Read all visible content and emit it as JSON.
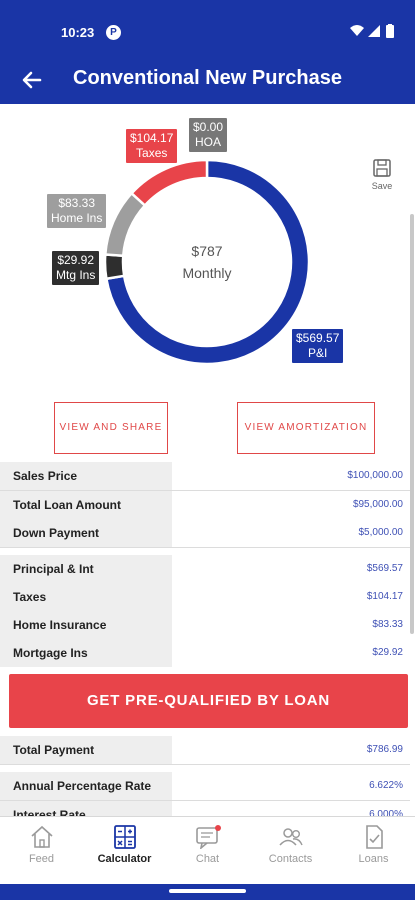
{
  "status_bar": {
    "time": "10:23",
    "notification_badge": "P"
  },
  "header": {
    "title": "Conventional New Purchase",
    "back_icon": "arrow-left-icon"
  },
  "save": {
    "label": "Save"
  },
  "chart_data": {
    "type": "pie",
    "categories": [
      "P&I",
      "Mtg Ins",
      "Home Ins",
      "Taxes",
      "HOA"
    ],
    "values": [
      569.57,
      29.92,
      83.33,
      104.17,
      0.0
    ],
    "value_labels": [
      "$569.57",
      "$29.92",
      "$83.33",
      "$104.17",
      "$0.00"
    ],
    "colors": [
      "#1a35a6",
      "#2e2e2e",
      "#9e9e9e",
      "#e8444a",
      "#777777"
    ],
    "center_text": [
      "$787",
      "Monthly"
    ]
  },
  "buttons": {
    "view_share": "VIEW AND SHARE",
    "view_amortization": "VIEW AMORTIZATION"
  },
  "loan_details": [
    {
      "label": "Sales Price",
      "value": "$100,000.00"
    },
    {
      "label": "Total Loan Amount",
      "value": "$95,000.00"
    },
    {
      "label": "Down Payment",
      "value": "$5,000.00"
    }
  ],
  "payment_breakdown": [
    {
      "label": "Principal & Int",
      "value": "$569.57"
    },
    {
      "label": "Taxes",
      "value": "$104.17"
    },
    {
      "label": "Home Insurance",
      "value": "$83.33"
    },
    {
      "label": "Mortgage Ins",
      "value": "$29.92"
    }
  ],
  "cta": {
    "label": "GET PRE-QUALIFIED BY LOAN"
  },
  "totals": [
    {
      "label": "Total Payment",
      "value": "$786.99"
    }
  ],
  "rates": [
    {
      "label": "Annual Percentage Rate",
      "value": "6.622%"
    },
    {
      "label": "Interest Rate",
      "value": "6.000%"
    }
  ],
  "nav": [
    {
      "label": "Feed",
      "icon": "home-icon"
    },
    {
      "label": "Calculator",
      "icon": "calculator-icon"
    },
    {
      "label": "Chat",
      "icon": "chat-icon"
    },
    {
      "label": "Contacts",
      "icon": "contacts-icon"
    },
    {
      "label": "Loans",
      "icon": "document-icon"
    }
  ],
  "nav_active_index": 1,
  "colors": {
    "brand": "#1a35a6",
    "accent": "#e8444a",
    "value_text": "#3f51b5"
  }
}
